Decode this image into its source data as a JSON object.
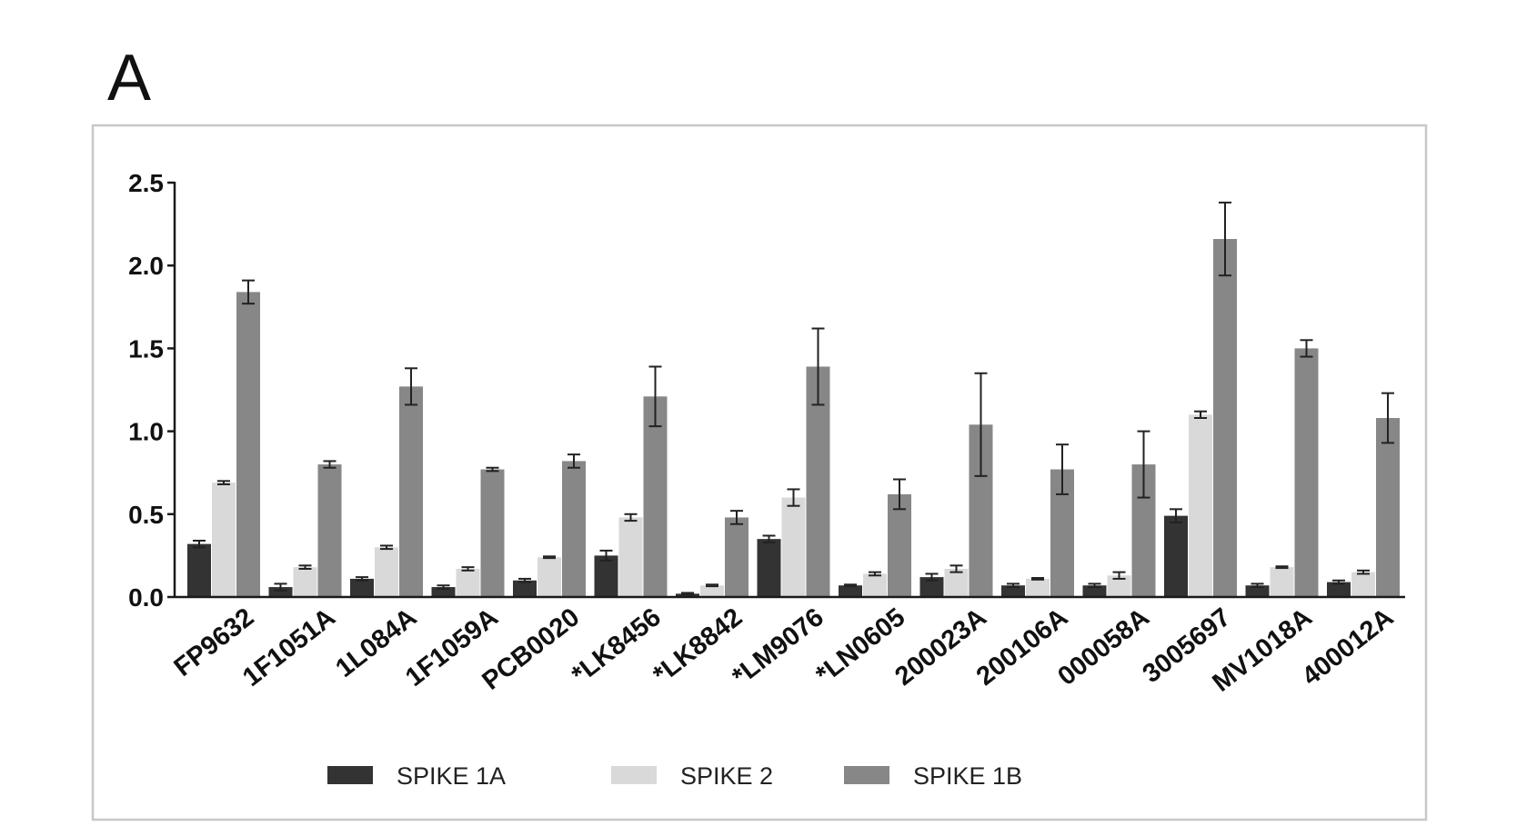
{
  "panel_label": "A",
  "colors": {
    "spike_1a": "#333333",
    "spike_2": "#d9d9d9",
    "spike_1b": "#878787",
    "axis": "#1a1a1a",
    "frame": "#c8c8c8",
    "error_bar": "#222222"
  },
  "chart_data": {
    "type": "bar",
    "title": "",
    "xlabel": "",
    "ylabel": "",
    "ylim": [
      0,
      2.5
    ],
    "y_ticks": [
      "0.0",
      "0.5",
      "1.0",
      "1.5",
      "2.0",
      "2.5"
    ],
    "y_tick_values": [
      0,
      0.5,
      1.0,
      1.5,
      2.0,
      2.5
    ],
    "grid": false,
    "legend_position": "bottom",
    "categories": [
      "FP9632",
      "1F1051A",
      "1L084A",
      "1F1059A",
      "PCB0020",
      "*LK8456",
      "*LK8842",
      "*LM9076",
      "*LN0605",
      "200023A",
      "200106A",
      "000058A",
      "3005697",
      "MV1018A",
      "400012A"
    ],
    "series": [
      {
        "name": "SPIKE 1A",
        "color_key": "spike_1a",
        "values": [
          0.32,
          0.06,
          0.11,
          0.06,
          0.1,
          0.25,
          0.02,
          0.35,
          0.07,
          0.12,
          0.07,
          0.07,
          0.49,
          0.07,
          0.09
        ],
        "errors": [
          0.02,
          0.02,
          0.01,
          0.01,
          0.01,
          0.03,
          0.005,
          0.02,
          0.005,
          0.02,
          0.01,
          0.01,
          0.04,
          0.01,
          0.01
        ]
      },
      {
        "name": "SPIKE 2",
        "color_key": "spike_2",
        "values": [
          0.69,
          0.18,
          0.3,
          0.17,
          0.24,
          0.48,
          0.07,
          0.6,
          0.14,
          0.17,
          0.11,
          0.13,
          1.1,
          0.18,
          0.15
        ],
        "errors": [
          0.01,
          0.01,
          0.01,
          0.01,
          0.005,
          0.02,
          0.005,
          0.05,
          0.01,
          0.02,
          0.005,
          0.02,
          0.02,
          0.005,
          0.01
        ]
      },
      {
        "name": "SPIKE 1B",
        "color_key": "spike_1b",
        "values": [
          1.84,
          0.8,
          1.27,
          0.77,
          0.82,
          1.21,
          0.48,
          1.39,
          0.62,
          1.04,
          0.77,
          0.8,
          2.16,
          1.5,
          1.08
        ],
        "errors": [
          0.07,
          0.02,
          0.11,
          0.01,
          0.04,
          0.18,
          0.04,
          0.23,
          0.09,
          0.31,
          0.15,
          0.2,
          0.22,
          0.05,
          0.15
        ]
      }
    ],
    "bar_order": [
      "SPIKE 1A",
      "SPIKE 2",
      "SPIKE 1B"
    ],
    "legend": [
      {
        "label": "SPIKE 1A",
        "color_key": "spike_1a"
      },
      {
        "label": "SPIKE 2",
        "color_key": "spike_2"
      },
      {
        "label": "SPIKE 1B",
        "color_key": "spike_1b"
      }
    ]
  }
}
